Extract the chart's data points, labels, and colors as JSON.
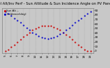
{
  "title": "Sol Alt/Inv Perf - Sun Altitude & Sun Incidence Angle on PV Panels",
  "background_color": "#c8c8c8",
  "plot_bg_color": "#c8c8c8",
  "grid_color": "#888888",
  "red_color": "#cc0000",
  "blue_color": "#0000cc",
  "x_hours": [
    5.0,
    5.5,
    6.0,
    6.5,
    7.0,
    7.5,
    8.0,
    8.5,
    9.0,
    9.5,
    10.0,
    10.5,
    11.0,
    11.5,
    12.0,
    12.5,
    13.0,
    13.5,
    14.0,
    14.5,
    15.0,
    15.5,
    16.0,
    16.5,
    17.0,
    17.5,
    18.0,
    18.5,
    19.0
  ],
  "sun_altitude": [
    0,
    3,
    8,
    13,
    19,
    25,
    31,
    36,
    41,
    46,
    50,
    53,
    55,
    56,
    56,
    55,
    53,
    50,
    46,
    41,
    36,
    31,
    25,
    19,
    13,
    8,
    3,
    0,
    0
  ],
  "sun_incidence": [
    88,
    83,
    78,
    73,
    68,
    63,
    57,
    51,
    46,
    41,
    37,
    33,
    30,
    28,
    27,
    28,
    30,
    33,
    37,
    41,
    46,
    51,
    57,
    63,
    68,
    73,
    78,
    83,
    88
  ],
  "xlim": [
    4.5,
    19.5
  ],
  "ylim": [
    -5,
    95
  ],
  "xtick_vals": [
    5,
    6,
    7,
    8,
    9,
    10,
    11,
    12,
    13,
    14,
    15,
    16,
    17,
    18,
    19
  ],
  "xtick_labels": [
    "5",
    "6",
    "7",
    "8",
    "9",
    "10",
    "11",
    "12",
    "13",
    "14",
    "15",
    "16",
    "17",
    "18",
    "19"
  ],
  "ytick_right_vals": [
    0,
    10,
    20,
    30,
    40,
    50,
    60,
    70,
    80,
    90
  ],
  "ytick_right_labels": [
    "0",
    "10",
    "20",
    "30",
    "40",
    "50",
    "60",
    "70",
    "80",
    "90"
  ],
  "legend_red": "Sun Alt --",
  "legend_blue": "Incidence(deg)",
  "title_fontsize": 3.8,
  "tick_fontsize": 3.0,
  "legend_fontsize": 2.8,
  "marker_size": 1.5,
  "grid_linewidth": 0.3,
  "grid_linestyle": ":"
}
